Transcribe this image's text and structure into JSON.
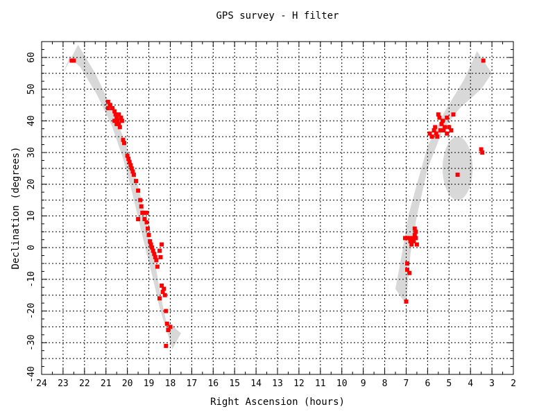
{
  "chart_data": {
    "type": "scatter",
    "title": "GPS survey - H filter",
    "xlabel": "Right Ascension (hours)",
    "ylabel": "Declination (degrees)",
    "xlim": [
      24,
      2
    ],
    "ylim": [
      -40,
      65
    ],
    "x_ticks": [
      24,
      23,
      22,
      21,
      20,
      19,
      18,
      17,
      16,
      15,
      14,
      13,
      12,
      11,
      10,
      9,
      8,
      7,
      6,
      5,
      4,
      3,
      2
    ],
    "y_ticks": [
      -40,
      -30,
      -20,
      -10,
      0,
      10,
      20,
      30,
      40,
      50,
      60
    ],
    "grid": true,
    "colors": {
      "points": "#ff0000",
      "survey_region": "#d8d8d8"
    },
    "survey_regions": [
      {
        "shape": "band",
        "outline": [
          [
            23.0,
            55
          ],
          [
            22.3,
            64
          ],
          [
            21.5,
            55
          ],
          [
            20.8,
            45
          ],
          [
            20.2,
            35
          ],
          [
            19.7,
            25
          ],
          [
            19.3,
            14
          ],
          [
            19.0,
            5
          ],
          [
            18.7,
            -5
          ],
          [
            18.45,
            -15
          ],
          [
            18.2,
            -23
          ],
          [
            17.5,
            -27
          ],
          [
            17.9,
            -32
          ],
          [
            18.5,
            -19
          ],
          [
            18.8,
            -10
          ],
          [
            19.1,
            -2
          ],
          [
            19.45,
            8
          ],
          [
            19.8,
            18
          ],
          [
            20.2,
            28
          ],
          [
            20.7,
            38
          ],
          [
            21.4,
            48
          ],
          [
            22.2,
            57
          ],
          [
            22.7,
            60
          ]
        ]
      },
      {
        "shape": "band",
        "outline": [
          [
            7.5,
            -13
          ],
          [
            7.2,
            -2
          ],
          [
            6.9,
            10
          ],
          [
            6.5,
            20
          ],
          [
            6.0,
            32
          ],
          [
            5.2,
            43
          ],
          [
            4.3,
            53
          ],
          [
            3.7,
            62
          ],
          [
            3.0,
            55
          ],
          [
            3.5,
            50
          ],
          [
            4.5,
            44
          ],
          [
            5.3,
            37
          ],
          [
            6.0,
            25
          ],
          [
            6.5,
            10
          ],
          [
            6.8,
            -2
          ],
          [
            7.0,
            -18
          ]
        ]
      },
      {
        "shape": "ellipse",
        "center": [
          4.6,
          25
        ],
        "radii": [
          0.7,
          10
        ]
      }
    ],
    "points": [
      [
        22.5,
        59
      ],
      [
        22.6,
        59
      ],
      [
        20.9,
        46
      ],
      [
        20.9,
        44
      ],
      [
        20.8,
        45
      ],
      [
        20.7,
        44
      ],
      [
        20.6,
        43
      ],
      [
        20.55,
        42
      ],
      [
        20.5,
        41
      ],
      [
        20.45,
        40
      ],
      [
        20.6,
        40
      ],
      [
        20.5,
        39
      ],
      [
        20.4,
        42
      ],
      [
        20.3,
        41
      ],
      [
        20.25,
        40
      ],
      [
        20.35,
        38
      ],
      [
        20.4,
        39
      ],
      [
        20.2,
        34
      ],
      [
        20.15,
        33
      ],
      [
        20.0,
        29
      ],
      [
        19.95,
        28
      ],
      [
        19.9,
        27
      ],
      [
        19.85,
        26
      ],
      [
        19.8,
        25
      ],
      [
        19.75,
        24
      ],
      [
        19.7,
        23
      ],
      [
        19.6,
        21
      ],
      [
        19.5,
        18
      ],
      [
        19.4,
        15
      ],
      [
        19.35,
        13
      ],
      [
        19.3,
        11
      ],
      [
        19.2,
        11
      ],
      [
        19.1,
        11
      ],
      [
        19.5,
        9
      ],
      [
        19.2,
        9
      ],
      [
        19.1,
        8
      ],
      [
        19.05,
        6
      ],
      [
        19.0,
        4
      ],
      [
        18.95,
        2
      ],
      [
        18.9,
        1
      ],
      [
        18.85,
        0
      ],
      [
        18.8,
        -1
      ],
      [
        18.75,
        -2
      ],
      [
        18.7,
        -3
      ],
      [
        18.65,
        -4
      ],
      [
        18.6,
        -6
      ],
      [
        18.5,
        -1
      ],
      [
        18.4,
        1
      ],
      [
        18.45,
        -3
      ],
      [
        18.4,
        -12
      ],
      [
        18.35,
        -14
      ],
      [
        18.3,
        -13
      ],
      [
        18.25,
        -15
      ],
      [
        18.5,
        -16
      ],
      [
        18.2,
        -20
      ],
      [
        18.15,
        -24
      ],
      [
        18.1,
        -26
      ],
      [
        18.0,
        -25
      ],
      [
        18.2,
        -31
      ],
      [
        6.95,
        3
      ],
      [
        6.85,
        3
      ],
      [
        6.8,
        2
      ],
      [
        6.75,
        1
      ],
      [
        6.7,
        3
      ],
      [
        6.65,
        2
      ],
      [
        6.6,
        4
      ],
      [
        6.55,
        5
      ],
      [
        6.6,
        6
      ],
      [
        6.5,
        1
      ],
      [
        6.55,
        3
      ],
      [
        7.05,
        3
      ],
      [
        6.95,
        -5
      ],
      [
        6.95,
        -7
      ],
      [
        6.85,
        -8
      ],
      [
        7.0,
        -17
      ],
      [
        5.9,
        36
      ],
      [
        5.8,
        35
      ],
      [
        5.7,
        37
      ],
      [
        5.65,
        38
      ],
      [
        5.6,
        36
      ],
      [
        5.55,
        35
      ],
      [
        5.5,
        42
      ],
      [
        5.45,
        41
      ],
      [
        5.4,
        37
      ],
      [
        5.35,
        39
      ],
      [
        5.3,
        40
      ],
      [
        5.25,
        37
      ],
      [
        5.2,
        38
      ],
      [
        5.1,
        36
      ],
      [
        5.0,
        38
      ],
      [
        4.9,
        37
      ],
      [
        4.8,
        42
      ],
      [
        5.1,
        41
      ],
      [
        4.6,
        23
      ],
      [
        3.5,
        31
      ],
      [
        3.45,
        30
      ],
      [
        3.4,
        59
      ]
    ]
  }
}
